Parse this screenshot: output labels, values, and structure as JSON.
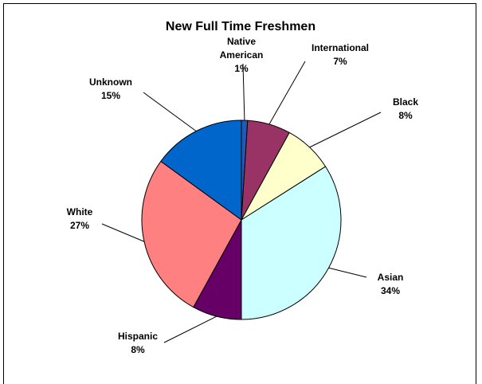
{
  "chart_data": {
    "type": "pie",
    "title": "New Full Time Freshmen",
    "slices": [
      {
        "label_lines": [
          "Native",
          "American"
        ],
        "value_label": "1%",
        "value": 1,
        "color": "#1f5bb4"
      },
      {
        "label_lines": [
          "International"
        ],
        "value_label": "7%",
        "value": 7,
        "color": "#993366"
      },
      {
        "label_lines": [
          "Black"
        ],
        "value_label": "8%",
        "value": 8,
        "color": "#ffffcc"
      },
      {
        "label_lines": [
          "Asian"
        ],
        "value_label": "34%",
        "value": 34,
        "color": "#ccffff"
      },
      {
        "label_lines": [
          "Hispanic"
        ],
        "value_label": "8%",
        "value": 8,
        "color": "#660066"
      },
      {
        "label_lines": [
          "White"
        ],
        "value_label": "27%",
        "value": 27,
        "color": "#ff8080"
      },
      {
        "label_lines": [
          "Unknown"
        ],
        "value_label": "15%",
        "value": 15,
        "color": "#0066cc"
      }
    ],
    "legend": "none"
  }
}
